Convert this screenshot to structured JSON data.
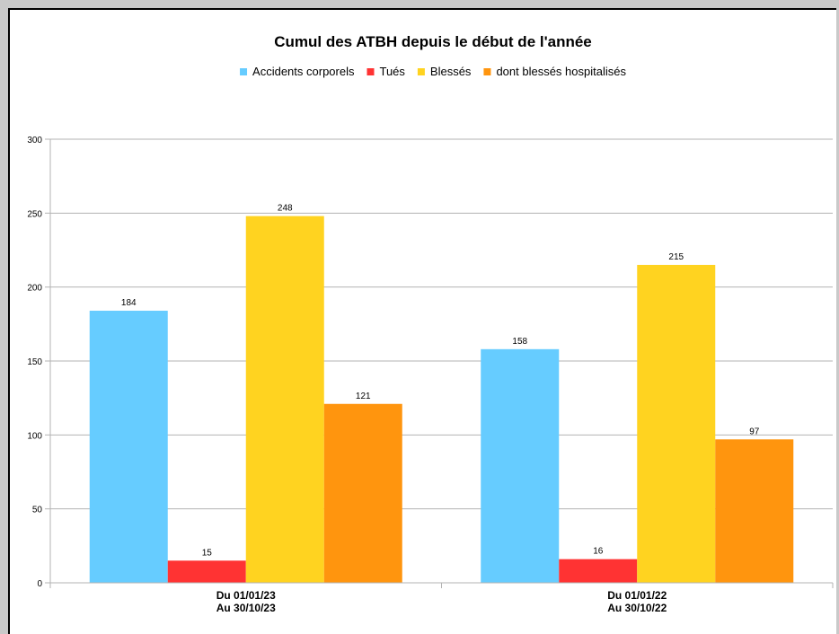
{
  "chart_data": {
    "type": "bar",
    "title": "Cumul des ATBH depuis le début de l'année",
    "categories": [
      [
        "Du 01/01/23",
        "Au 30/10/23"
      ],
      [
        "Du 01/01/22",
        "Au 30/10/22"
      ]
    ],
    "series": [
      {
        "name": "Accidents corporels",
        "color": "#66ccff",
        "values": [
          184,
          158
        ]
      },
      {
        "name": "Tués",
        "color": "#ff3333",
        "values": [
          15,
          16
        ]
      },
      {
        "name": "Blessés",
        "color": "#ffd320",
        "values": [
          248,
          215
        ]
      },
      {
        "name": "dont blessés hospitalisés",
        "color": "#ff950e",
        "values": [
          121,
          97
        ]
      }
    ],
    "ylim": [
      0,
      300
    ],
    "yticks": [
      0,
      50,
      100,
      150,
      200,
      250,
      300
    ],
    "grid": true,
    "legend": "top"
  }
}
